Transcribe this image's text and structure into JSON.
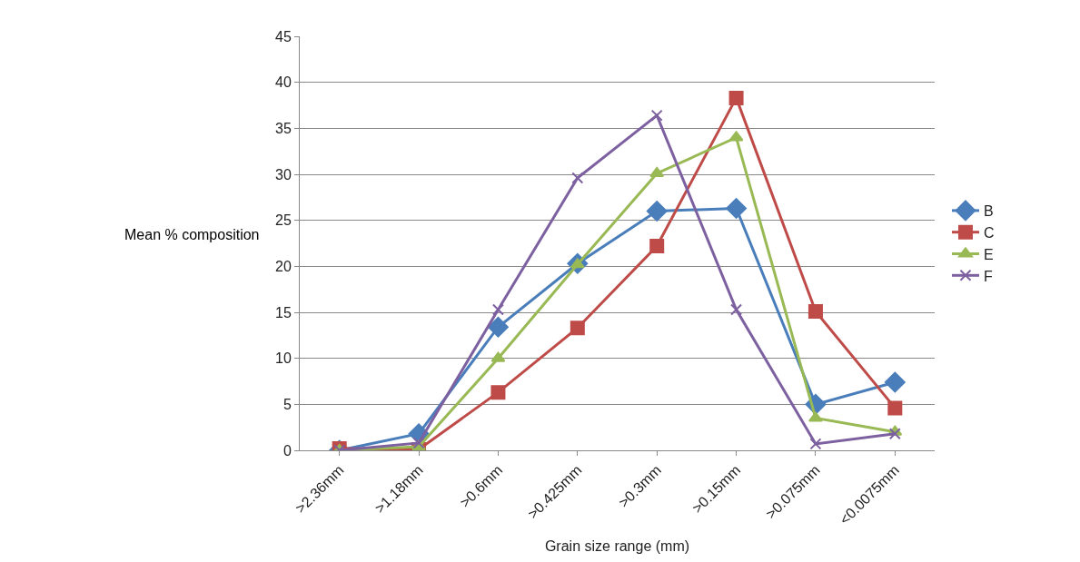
{
  "chart_data": {
    "type": "line",
    "xlabel": "Grain size range (mm)",
    "ylabel": "Mean % composition",
    "categories": [
      ">2.36mm",
      ">1.18mm",
      ">0.6mm",
      ">0.425mm",
      ">0.3mm",
      ">0.15mm",
      ">0.075mm",
      "<0.0075mm"
    ],
    "series": [
      {
        "name": "B",
        "color": "#4a7ebb",
        "marker": "diamond",
        "values": [
          0,
          1.8,
          13.4,
          20.3,
          26,
          26.3,
          5,
          7.4
        ]
      },
      {
        "name": "C",
        "color": "#be4b48",
        "marker": "square",
        "values": [
          0.2,
          0.1,
          6.3,
          13.3,
          22.2,
          38.3,
          15.1,
          4.6
        ]
      },
      {
        "name": "E",
        "color": "#98b954",
        "marker": "triangle",
        "values": [
          0,
          0.4,
          10,
          20.2,
          30.1,
          34,
          3.5,
          2
        ]
      },
      {
        "name": "F",
        "color": "#7d60a0",
        "marker": "cross",
        "values": [
          0,
          0.8,
          15.3,
          29.6,
          36.4,
          15.3,
          0.7,
          1.8
        ]
      }
    ],
    "ylim": [
      0,
      45
    ],
    "yticks": [
      0,
      5,
      10,
      15,
      20,
      25,
      30,
      35,
      40,
      45
    ],
    "grid": "y",
    "legend": "right"
  }
}
